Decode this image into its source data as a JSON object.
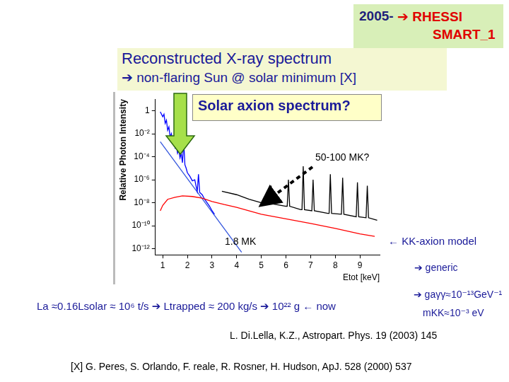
{
  "slide": {
    "header": {
      "year": "2005-",
      "line1": "➔ RHESSI",
      "line2": "SMART_1"
    },
    "title": {
      "line1": "Reconstructed X-ray spectrum",
      "line2": "➔ non-flaring Sun @ solar minimum [X]"
    },
    "callout": "Solar axion spectrum?",
    "annotations": {
      "hot": "50-100 MK?",
      "cool": "1.8 MK",
      "model": "← KK-axion model",
      "generic": "➔ generic"
    },
    "mass_flow": "La ≈0.16Lsolar ≈ 10⁶ t/s ➔ Ltrapped ≈ 200 kg/s ➔ 10²² g ← now",
    "coupling": "➔ gaγγ≈10⁻¹³GeV⁻¹",
    "mass": "mKK≈10⁻³ eV",
    "citation": "L. Di.Lella, K.Z., Astropart. Phys. 19 (2003) 145",
    "reference": "[X] G. Peres, S. Orlando, F. reale, R. Rosner, H. Hudson, ApJ. 528 (2000) 537"
  },
  "chart_data": {
    "type": "line",
    "x_label": "Etot [keV]",
    "y_label": "Relative Photon Intensity",
    "log": "y",
    "grid": false,
    "xlim": [
      0.7,
      9.8
    ],
    "xticks": [
      1,
      2,
      3,
      4,
      5,
      6,
      7,
      8,
      9
    ],
    "ylim": [
      3e-13,
      10
    ],
    "yticks": [
      {
        "value": 1,
        "label": "1"
      },
      {
        "value": 0.01,
        "label": "10⁻²"
      },
      {
        "value": 0.0001,
        "label": "10⁻⁴"
      },
      {
        "value": 1e-06,
        "label": "10⁻⁶"
      },
      {
        "value": 1e-08,
        "label": "10⁻⁸"
      },
      {
        "value": 1e-10,
        "label": "10⁻¹⁰"
      },
      {
        "value": 1e-12,
        "label": "10⁻¹²"
      }
    ],
    "series": [
      {
        "color": "#ff0000",
        "line_style": "solid",
        "x": [
          0.9,
          1.0,
          1.2,
          1.5,
          1.8,
          2.2,
          2.6,
          3.0,
          3.5,
          4.0,
          5.0,
          6.0,
          7.0,
          8.0,
          9.0,
          9.6
        ],
        "values": [
          2e-09,
          6e-09,
          2e-08,
          3e-08,
          4e-08,
          3.5e-08,
          2.5e-08,
          1.3e-08,
          7e-09,
          4e-09,
          1e-09,
          4e-10,
          1.6e-10,
          6e-11,
          2e-11,
          1.2e-11
        ]
      },
      {
        "color": "#000000",
        "line_style": "solid",
        "x": [
          3.4,
          4.0,
          4.5,
          5.0,
          5.35,
          5.4,
          5.45,
          6.0,
          6.05,
          6.1,
          6.15,
          6.6,
          6.65,
          6.7,
          6.75,
          7.05,
          7.1,
          7.15,
          7.7,
          7.75,
          7.8,
          7.85,
          8.25,
          8.3,
          8.35,
          8.85,
          8.9,
          8.95,
          9.25,
          9.3,
          9.35,
          9.7
        ],
        "values": [
          1e-07,
          5e-08,
          2e-08,
          1e-08,
          8e-09,
          3e-07,
          8e-09,
          5e-09,
          5e-09,
          1e-06,
          5e-09,
          2.5e-09,
          2.5e-09,
          1.5e-05,
          2.5e-09,
          2e-09,
          1e-06,
          2e-09,
          1.2e-09,
          1.2e-09,
          3e-06,
          1.2e-09,
          1e-09,
          1.5e-06,
          1e-09,
          6e-10,
          6e-07,
          6e-10,
          5e-10,
          3e-07,
          5e-10,
          3e-10
        ]
      },
      {
        "color": "#0000ff",
        "line_style": "solid",
        "x": [
          0.9,
          1.0,
          1.05,
          1.1,
          1.15,
          1.2,
          1.25,
          1.3,
          1.35,
          1.4,
          1.45,
          1.5,
          1.55,
          1.6,
          1.65,
          1.7,
          1.75,
          1.8,
          1.85,
          1.9,
          1.95,
          2.0,
          2.1,
          2.2,
          2.3,
          2.35,
          2.4,
          2.45,
          2.5,
          2.6,
          2.7,
          2.8,
          2.9,
          3.0,
          3.1
        ],
        "values": [
          0.8,
          0.3,
          0.5,
          0.08,
          0.15,
          0.02,
          0.04,
          0.005,
          0.01,
          0.002,
          0.003,
          0.0006,
          0.001,
          0.0002,
          0.0004,
          8e-05,
          0.0002,
          3e-05,
          0.002,
          2e-05,
          1e-05,
          4e-06,
          2e-06,
          8e-07,
          1e-06,
          3e-07,
          1e-07,
          3e-06,
          8e-08,
          5e-08,
          2e-08,
          1e-08,
          5e-09,
          2e-09,
          1e-09
        ]
      },
      {
        "color": "#3355dd",
        "line_style": "solid",
        "x": [
          0.9,
          4.2
        ],
        "values": [
          0.002,
          5e-13
        ]
      }
    ]
  }
}
